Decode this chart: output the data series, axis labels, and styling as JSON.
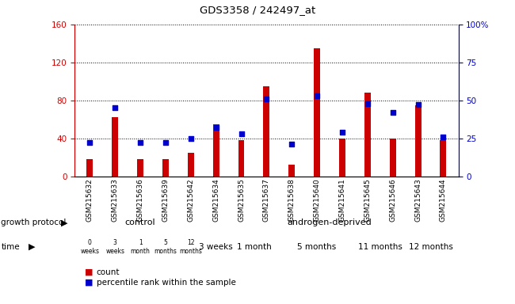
{
  "title": "GDS3358 / 242497_at",
  "samples": [
    "GSM215632",
    "GSM215633",
    "GSM215636",
    "GSM215639",
    "GSM215642",
    "GSM215634",
    "GSM215635",
    "GSM215637",
    "GSM215638",
    "GSM215640",
    "GSM215641",
    "GSM215645",
    "GSM215646",
    "GSM215643",
    "GSM215644"
  ],
  "counts": [
    18,
    62,
    18,
    18,
    25,
    55,
    38,
    95,
    12,
    135,
    40,
    88,
    40,
    75,
    38
  ],
  "percentiles": [
    22,
    45,
    22,
    22,
    25,
    32,
    28,
    51,
    21,
    53,
    29,
    48,
    42,
    47,
    26
  ],
  "ylim_left": [
    0,
    160
  ],
  "ylim_right": [
    0,
    100
  ],
  "yticks_left": [
    0,
    40,
    80,
    120,
    160
  ],
  "yticks_right": [
    0,
    25,
    50,
    75,
    100
  ],
  "bar_color": "#cc0000",
  "dot_color": "#0000cc",
  "left_axis_color": "#cc0000",
  "right_axis_color": "#0000cc",
  "control_color": "#aaffaa",
  "androgen_color": "#55ee55",
  "time_ctrl_color": "#ddaadd",
  "time_ctrl_last_color": "#cc44cc",
  "time_androgen_color": "#cc44cc",
  "xtick_bg": "#dddddd",
  "control_group_indices": [
    0,
    1,
    2,
    3,
    4
  ],
  "androgen_group_indices": [
    5,
    6,
    7,
    8,
    9,
    10,
    11,
    12,
    13,
    14
  ],
  "time_labels_control": [
    "0\nweeks",
    "3\nweeks",
    "1\nmonth",
    "5\nmonths",
    "12\nmonths"
  ],
  "time_labels_androgen": [
    "3 weeks",
    "1 month",
    "5 months",
    "11 months",
    "12 months"
  ],
  "androgen_time_groups": [
    [
      5
    ],
    [
      6,
      7
    ],
    [
      8,
      9,
      10
    ],
    [
      11,
      12
    ],
    [
      13,
      14
    ]
  ],
  "control_label": "control",
  "androgen_label": "androgen-deprived",
  "growth_protocol_label": "growth protocol",
  "time_label": "time",
  "legend_count": "count",
  "legend_percentile": "percentile rank within the sample"
}
